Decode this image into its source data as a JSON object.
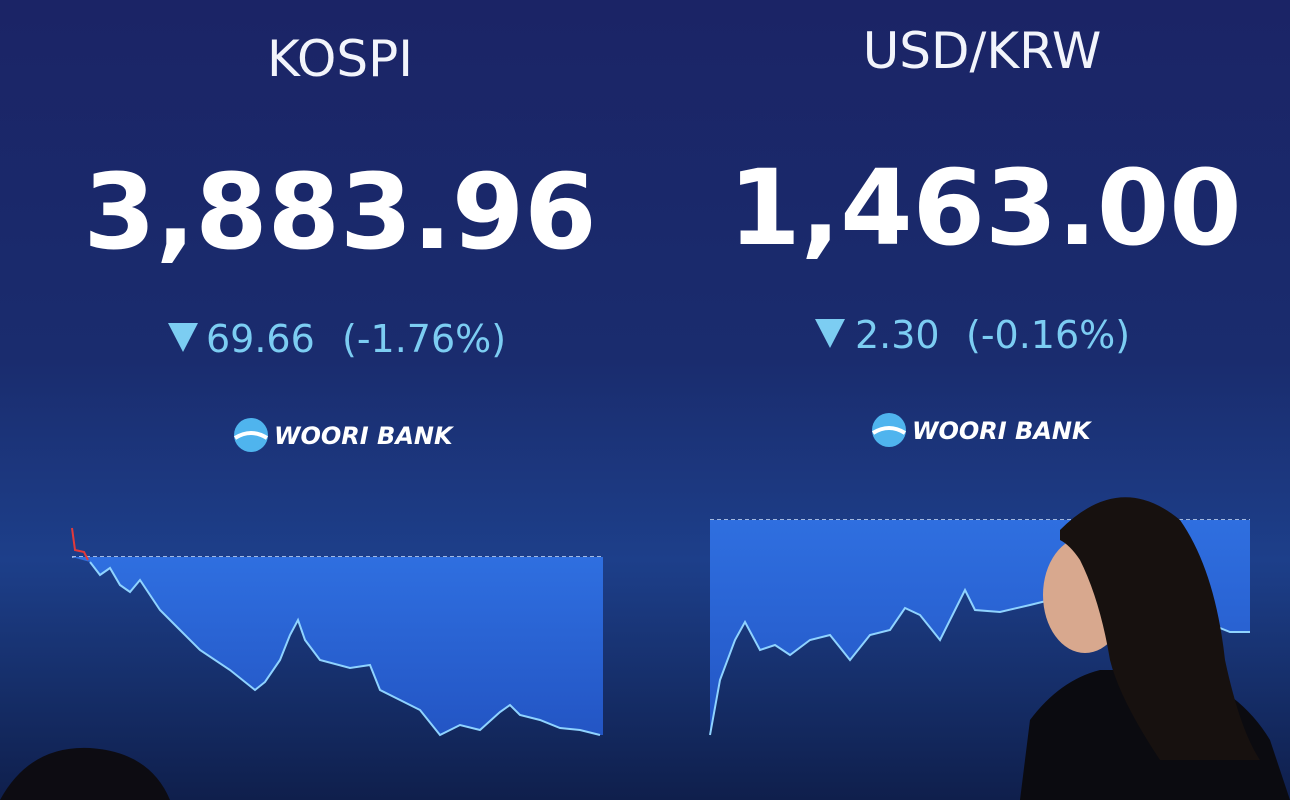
{
  "panels": [
    {
      "title": "KOSPI",
      "value": "3,883.96",
      "change": "69.66",
      "change_pct": "(-1.76%)",
      "brand": "WOORI BANK"
    },
    {
      "title": "USD/KRW",
      "value": "1,463.00",
      "change": "2.30",
      "change_pct": "(-0.16%)",
      "brand": "WOORI BANK"
    }
  ]
}
